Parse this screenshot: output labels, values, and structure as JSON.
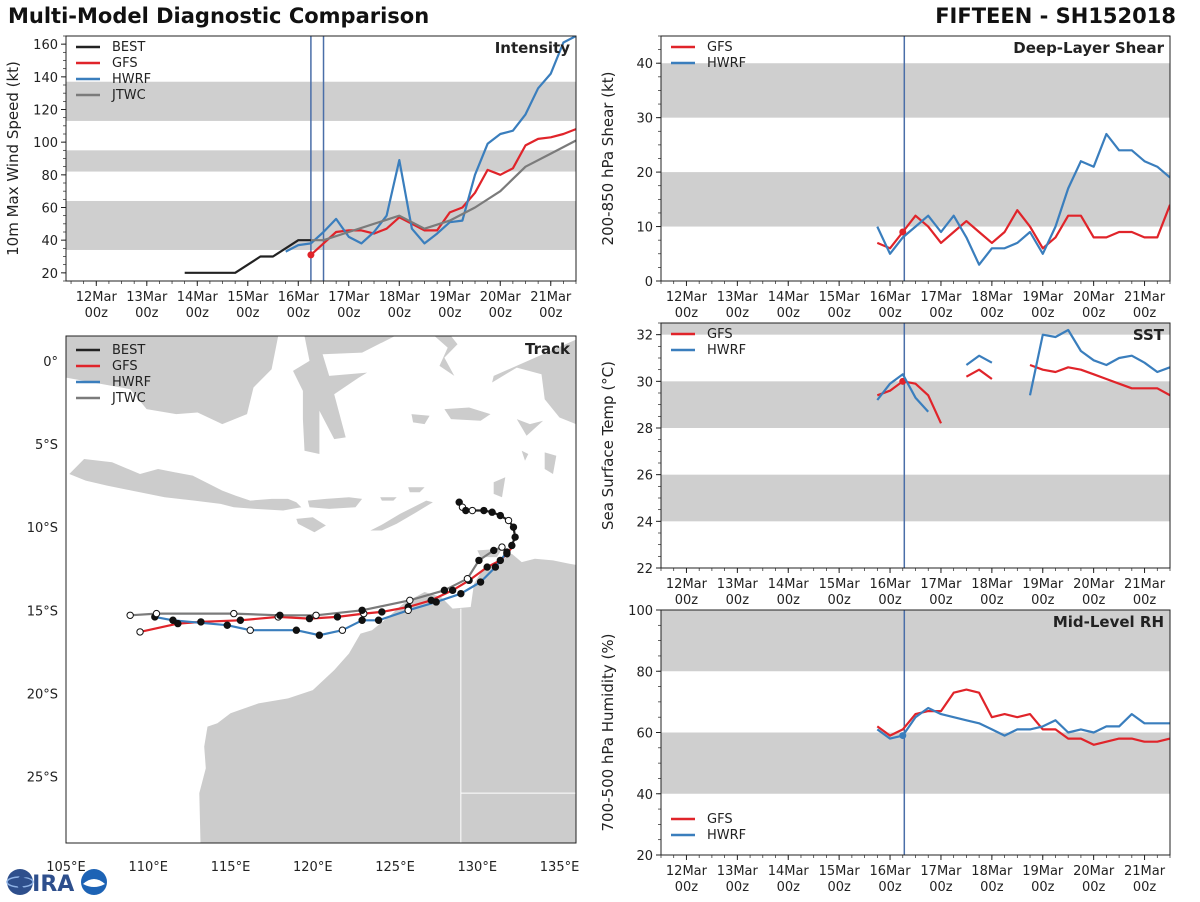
{
  "header": {
    "title": "Multi-Model Diagnostic Comparison",
    "storm": "FIFTEEN - SH152018"
  },
  "logo": {
    "text": "CIRA"
  },
  "colors": {
    "BEST": "#222222",
    "GFS": "#e0242a",
    "HWRF": "#3a7ebd",
    "JTWC": "#7b7b7b",
    "band": "#cfcfcf",
    "marker": "#4a6ea8"
  },
  "time_axis": {
    "ticks": [
      {
        "t": 0,
        "top": "12Mar",
        "bottom": "00z"
      },
      {
        "t": 1,
        "top": "13Mar",
        "bottom": "00z"
      },
      {
        "t": 2,
        "top": "14Mar",
        "bottom": "00z"
      },
      {
        "t": 3,
        "top": "15Mar",
        "bottom": "00z"
      },
      {
        "t": 4,
        "top": "16Mar",
        "bottom": "00z"
      },
      {
        "t": 5,
        "top": "17Mar",
        "bottom": "00z"
      },
      {
        "t": 6,
        "top": "18Mar",
        "bottom": "00z"
      },
      {
        "t": 7,
        "top": "19Mar",
        "bottom": "00z"
      },
      {
        "t": 8,
        "top": "20Mar",
        "bottom": "00z"
      },
      {
        "t": 9,
        "top": "21Mar",
        "bottom": "00z"
      }
    ]
  },
  "chart_data": [
    {
      "id": "intensity",
      "type": "line",
      "title": "Intensity",
      "ylabel": "10m Max Wind Speed (kt)",
      "xlim": [
        -0.6,
        9.5
      ],
      "ylim": [
        15,
        165
      ],
      "yticks": [
        20,
        40,
        60,
        80,
        100,
        120,
        140,
        160
      ],
      "bands": [
        [
          34,
          64
        ],
        [
          82,
          95
        ],
        [
          113,
          137
        ]
      ],
      "vlines": [
        4.25,
        4.5
      ],
      "legend": [
        "BEST",
        "GFS",
        "HWRF",
        "JTWC"
      ],
      "series": [
        {
          "name": "BEST",
          "x": [
            1.75,
            2.0,
            2.25,
            2.5,
            2.75,
            3.0,
            3.25,
            3.5,
            3.75,
            4.0,
            4.25
          ],
          "y": [
            20,
            20,
            20,
            20,
            20,
            25,
            30,
            30,
            35,
            40,
            40
          ]
        },
        {
          "name": "GFS",
          "x": [
            4.25,
            4.5,
            4.75,
            5.0,
            5.25,
            5.5,
            5.75,
            6.0,
            6.25,
            6.5,
            6.75,
            7.0,
            7.25,
            7.5,
            7.75,
            8.0,
            8.25,
            8.5,
            8.75,
            9.0,
            9.25,
            9.5
          ],
          "y": [
            31,
            38,
            45,
            46,
            46,
            44,
            47,
            54,
            50,
            46,
            46,
            57,
            60,
            69,
            83,
            80,
            84,
            98,
            102,
            103,
            105,
            108
          ],
          "marker": true
        },
        {
          "name": "HWRF",
          "x": [
            3.75,
            4.0,
            4.25,
            4.5,
            4.75,
            5.0,
            5.25,
            5.5,
            5.75,
            6.0,
            6.25,
            6.5,
            6.75,
            7.0,
            7.25,
            7.5,
            7.75,
            8.0,
            8.25,
            8.5,
            8.75,
            9.0,
            9.25,
            9.5
          ],
          "y": [
            33,
            37,
            38,
            45,
            53,
            42,
            38,
            45,
            55,
            89,
            47,
            38,
            44,
            51,
            52,
            80,
            99,
            105,
            107,
            117,
            133,
            142,
            161,
            165
          ]
        },
        {
          "name": "JTWC",
          "x": [
            4.25,
            4.5,
            5.0,
            5.5,
            6.0,
            6.5,
            7.0,
            7.5,
            8.0,
            8.5,
            9.0,
            9.5
          ],
          "y": [
            40,
            40,
            45,
            50,
            55,
            47,
            52,
            60,
            70,
            85,
            93,
            101
          ]
        }
      ]
    },
    {
      "id": "shear",
      "type": "line",
      "title": "Deep-Layer Shear",
      "ylabel": "200-850 hPa Shear (kt)",
      "xlim": [
        -0.5,
        9.5
      ],
      "ylim": [
        0,
        45
      ],
      "yticks": [
        0,
        10,
        20,
        30,
        40
      ],
      "bands": [
        [
          10,
          20
        ],
        [
          30,
          40
        ]
      ],
      "vlines": [
        4.28
      ],
      "legend": [
        "GFS",
        "HWRF"
      ],
      "series": [
        {
          "name": "GFS",
          "x": [
            3.75,
            4.0,
            4.25,
            4.5,
            4.75,
            5.0,
            5.25,
            5.5,
            5.75,
            6.0,
            6.25,
            6.5,
            6.75,
            7.0,
            7.25,
            7.5,
            7.75,
            8.0,
            8.25,
            8.5,
            8.75,
            9.0,
            9.25,
            9.5
          ],
          "y": [
            7,
            6,
            9,
            12,
            10,
            7,
            9,
            11,
            9,
            7,
            9,
            13,
            10,
            6,
            8,
            12,
            12,
            8,
            8,
            9,
            9,
            8,
            8,
            14
          ],
          "marker": true
        },
        {
          "name": "HWRF",
          "x": [
            3.75,
            4.0,
            4.25,
            4.5,
            4.75,
            5.0,
            5.25,
            5.5,
            5.75,
            6.0,
            6.25,
            6.5,
            6.75,
            7.0,
            7.25,
            7.5,
            7.75,
            8.0,
            8.25,
            8.5,
            8.75,
            9.0,
            9.25,
            9.5
          ],
          "y": [
            10,
            5,
            8,
            10,
            12,
            9,
            12,
            8,
            3,
            6,
            6,
            7,
            9,
            5,
            10,
            17,
            22,
            21,
            27,
            24,
            24,
            22,
            21,
            19
          ]
        }
      ]
    },
    {
      "id": "sst",
      "type": "line",
      "title": "SST",
      "ylabel": "Sea Surface Temp (°C)",
      "xlim": [
        -0.5,
        9.5
      ],
      "ylim": [
        22,
        32.5
      ],
      "yticks": [
        22,
        24,
        26,
        28,
        30,
        32
      ],
      "bands": [
        [
          24,
          26
        ],
        [
          28,
          30
        ],
        [
          32,
          32.5
        ]
      ],
      "vlines": [
        4.28
      ],
      "legend": [
        "GFS",
        "HWRF"
      ],
      "series": [
        {
          "name": "GFS",
          "x": [
            3.75,
            4.0,
            4.25,
            4.5,
            4.75,
            5.0
          ],
          "y": [
            29.4,
            29.6,
            30.0,
            29.9,
            29.4,
            28.2
          ],
          "marker": true
        },
        {
          "name": "GFS",
          "x": [
            5.5,
            5.75,
            6.0
          ],
          "y": [
            30.2,
            30.5,
            30.1
          ]
        },
        {
          "name": "GFS",
          "x": [
            6.75,
            7.0,
            7.25,
            7.5,
            7.75,
            8.0,
            8.25,
            8.5,
            8.75,
            9.0,
            9.25,
            9.5
          ],
          "y": [
            30.7,
            30.5,
            30.4,
            30.6,
            30.5,
            30.3,
            30.1,
            29.9,
            29.7,
            29.7,
            29.7,
            29.4
          ]
        },
        {
          "name": "HWRF",
          "x": [
            3.75,
            4.0,
            4.25,
            4.5,
            4.75
          ],
          "y": [
            29.2,
            29.9,
            30.3,
            29.3,
            28.7
          ]
        },
        {
          "name": "HWRF",
          "x": [
            5.5,
            5.75,
            6.0
          ],
          "y": [
            30.7,
            31.1,
            30.8
          ]
        },
        {
          "name": "HWRF",
          "x": [
            6.75,
            7.0,
            7.25,
            7.5,
            7.75,
            8.0,
            8.25,
            8.5,
            8.75,
            9.0,
            9.25,
            9.5
          ],
          "y": [
            29.4,
            32.0,
            31.9,
            32.2,
            31.3,
            30.9,
            30.7,
            31.0,
            31.1,
            30.8,
            30.4,
            30.6
          ]
        }
      ]
    },
    {
      "id": "rh",
      "type": "line",
      "title": "Mid-Level RH",
      "ylabel": "700-500 hPa Humidity (%)",
      "xlim": [
        -0.5,
        9.5
      ],
      "ylim": [
        20,
        100
      ],
      "yticks": [
        20,
        40,
        60,
        80,
        100
      ],
      "bands": [
        [
          40,
          60
        ],
        [
          80,
          100
        ]
      ],
      "vlines": [
        4.28
      ],
      "legend": [
        "GFS",
        "HWRF"
      ],
      "series": [
        {
          "name": "GFS",
          "x": [
            3.75,
            4.0,
            4.25,
            4.5,
            4.75,
            5.0,
            5.25,
            5.5,
            5.75,
            6.0,
            6.25,
            6.5,
            6.75,
            7.0,
            7.25,
            7.5,
            7.75,
            8.0,
            8.25,
            8.5,
            8.75,
            9.0,
            9.25,
            9.5
          ],
          "y": [
            62,
            59,
            61,
            66,
            67,
            67,
            73,
            74,
            73,
            65,
            66,
            65,
            66,
            61,
            61,
            58,
            58,
            56,
            57,
            58,
            58,
            57,
            57,
            58
          ]
        },
        {
          "name": "HWRF",
          "x": [
            3.75,
            4.0,
            4.25,
            4.5,
            4.75,
            5.0,
            5.25,
            5.5,
            5.75,
            6.0,
            6.25,
            6.5,
            6.75,
            7.0,
            7.25,
            7.5,
            7.75,
            8.0,
            8.25,
            8.5,
            8.75,
            9.0,
            9.25,
            9.5
          ],
          "y": [
            61,
            58,
            59,
            65,
            68,
            66,
            65,
            64,
            63,
            61,
            59,
            61,
            61,
            62,
            64,
            60,
            61,
            60,
            62,
            62,
            66,
            63,
            63,
            63
          ],
          "marker": true
        }
      ]
    },
    {
      "id": "track",
      "type": "scatter",
      "title": "Track",
      "xlim": [
        105,
        136
      ],
      "ylim": [
        -29,
        1.5
      ],
      "xticks": [
        {
          "v": 105,
          "label": "105°E"
        },
        {
          "v": 110,
          "label": "110°E"
        },
        {
          "v": 115,
          "label": "115°E"
        },
        {
          "v": 120,
          "label": "120°E"
        },
        {
          "v": 125,
          "label": "125°E"
        },
        {
          "v": 130,
          "label": "130°E"
        },
        {
          "v": 135,
          "label": "135°E"
        }
      ],
      "yticks": [
        {
          "v": 0,
          "label": "0°"
        },
        {
          "v": -5,
          "label": "5°S"
        },
        {
          "v": -10,
          "label": "10°S"
        },
        {
          "v": -15,
          "label": "15°S"
        },
        {
          "v": -20,
          "label": "20°S"
        },
        {
          "v": -25,
          "label": "25°S"
        }
      ],
      "legend": [
        "BEST",
        "GFS",
        "HWRF",
        "JTWC"
      ],
      "series": [
        {
          "name": "BEST",
          "lon": [
            128.9,
            129.1,
            129.3,
            129.7,
            130.4,
            130.9,
            131.4,
            131.9,
            132.2,
            132.3,
            132.1
          ],
          "lat": [
            -8.5,
            -8.8,
            -9.0,
            -9.0,
            -9.0,
            -9.1,
            -9.3,
            -9.6,
            -10.0,
            -10.6,
            -11.1
          ],
          "open": [
            false,
            true,
            false,
            true,
            false,
            false,
            false,
            true,
            false,
            false,
            false
          ]
        },
        {
          "name": "GFS",
          "lon": [
            132.2,
            131.8,
            131.4,
            130.6,
            129.5,
            128.5,
            127.2,
            125.8,
            124.2,
            123.1,
            121.5,
            119.8,
            117.9,
            115.6,
            113.2,
            111.8,
            109.5
          ],
          "lat": [
            -11.1,
            -11.6,
            -12.0,
            -12.4,
            -13.2,
            -13.8,
            -14.4,
            -14.8,
            -15.1,
            -15.2,
            -15.4,
            -15.5,
            -15.4,
            -15.6,
            -15.7,
            -15.8,
            -16.3
          ],
          "open": [
            false,
            false,
            false,
            false,
            false,
            false,
            false,
            false,
            false,
            true,
            false,
            false,
            true,
            false,
            false,
            false,
            true
          ]
        },
        {
          "name": "HWRF",
          "lon": [
            131.8,
            131.1,
            130.2,
            129.0,
            127.5,
            125.8,
            124.0,
            123.0,
            121.8,
            120.4,
            119.0,
            116.2,
            114.8,
            111.5,
            110.4
          ],
          "lat": [
            -11.5,
            -12.4,
            -13.3,
            -14.0,
            -14.5,
            -15.0,
            -15.6,
            -15.6,
            -16.2,
            -16.5,
            -16.2,
            -16.2,
            -15.9,
            -15.6,
            -15.4
          ],
          "open": [
            false,
            false,
            false,
            false,
            false,
            true,
            false,
            false,
            true,
            false,
            false,
            true,
            false,
            false,
            false
          ]
        },
        {
          "name": "JTWC",
          "lon": [
            131.5,
            131.0,
            130.1,
            129.4,
            128.0,
            125.9,
            123.0,
            120.2,
            118.0,
            115.2,
            110.5,
            108.9
          ],
          "lat": [
            -11.2,
            -11.4,
            -12.0,
            -13.1,
            -13.8,
            -14.4,
            -15.0,
            -15.3,
            -15.3,
            -15.2,
            -15.2,
            -15.3
          ],
          "open": [
            true,
            false,
            false,
            true,
            false,
            true,
            false,
            true,
            false,
            true,
            true,
            true
          ]
        }
      ]
    }
  ]
}
